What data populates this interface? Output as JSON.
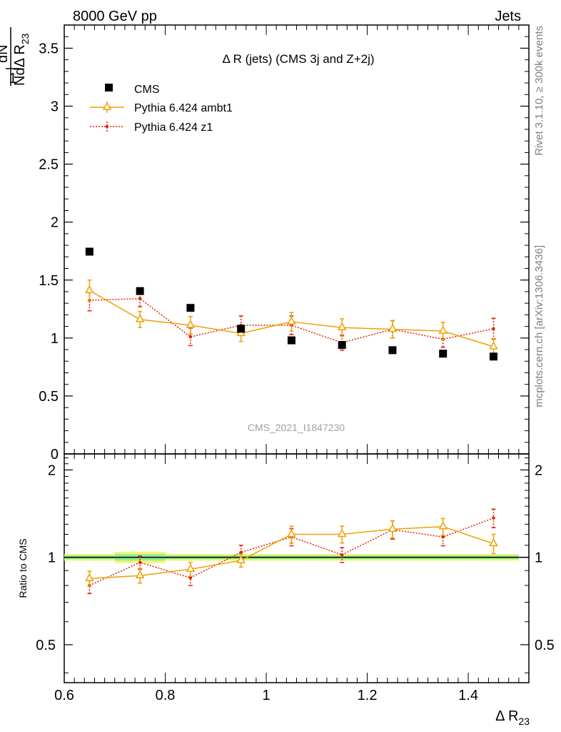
{
  "header": {
    "left": "8000 GeV pp",
    "right": "Jets"
  },
  "side_labels": {
    "rivet": "Rivet 3.1.10, ≥ 300k events",
    "mcplots": "mcplots.cern.ch [arXiv:1306.3436]"
  },
  "analysis_id": "CMS_2021_I1847230",
  "colors": {
    "data": "#000000",
    "ambt1": "#f0a000",
    "z1": "#e02000",
    "band_yellow": "#f5f57a",
    "band_green": "#90ee90"
  },
  "chart_data": [
    {
      "type": "scatter",
      "title": "Δ R (jets) (CMS 3j and Z+2j)",
      "xlabel": "Δ R23",
      "ylabel": "1/N dN/dΔ R23",
      "xlim": [
        0.6,
        1.52
      ],
      "ylim": [
        0,
        3.7
      ],
      "yticks": [
        "0",
        "0.5",
        "1",
        "1.5",
        "2",
        "2.5",
        "3",
        "3.5"
      ],
      "legend_position": "top-left",
      "grid": false,
      "x": [
        0.65,
        0.75,
        0.85,
        0.95,
        1.05,
        1.15,
        1.25,
        1.35,
        1.45
      ],
      "series": [
        {
          "name": "CMS",
          "marker": "square",
          "values": [
            1.745,
            1.405,
            1.26,
            1.08,
            0.98,
            0.94,
            0.895,
            0.865,
            0.84
          ]
        },
        {
          "name": "Pythia 6.424 ambt1",
          "marker": "open-triangle",
          "line": "solid",
          "values": [
            1.41,
            1.16,
            1.11,
            1.04,
            1.14,
            1.09,
            1.075,
            1.06,
            0.925
          ],
          "errors": [
            0.09,
            0.07,
            0.075,
            0.07,
            0.08,
            0.075,
            0.075,
            0.075,
            0.07
          ]
        },
        {
          "name": "Pythia 6.424 z1",
          "marker": "dot",
          "line": "dotted",
          "values": [
            1.325,
            1.34,
            1.01,
            1.11,
            1.11,
            0.96,
            1.075,
            0.99,
            1.08
          ],
          "errors": [
            0.09,
            0.07,
            0.075,
            0.08,
            0.08,
            0.065,
            0.075,
            0.07,
            0.09
          ]
        }
      ]
    },
    {
      "type": "scatter",
      "ylabel": "Ratio to CMS",
      "xlabel": "Δ R23",
      "xlim": [
        0.6,
        1.52
      ],
      "ylim": [
        0.37,
        2.27
      ],
      "yticks": [
        "0.5",
        "1",
        "2"
      ],
      "xticks": [
        "0.6",
        "0.8",
        "1",
        "1.2",
        "1.4"
      ],
      "grid": false,
      "x": [
        0.65,
        0.75,
        0.85,
        0.95,
        1.05,
        1.15,
        1.25,
        1.35,
        1.45
      ],
      "series": [
        {
          "name": "Pythia 6.424 ambt1",
          "marker": "open-triangle",
          "line": "solid",
          "values": [
            0.845,
            0.865,
            0.91,
            0.975,
            1.2,
            1.2,
            1.25,
            1.275,
            1.115
          ],
          "errors": [
            0.05,
            0.05,
            0.05,
            0.05,
            0.08,
            0.08,
            0.085,
            0.085,
            0.085
          ]
        },
        {
          "name": "Pythia 6.424 z1",
          "marker": "dot",
          "line": "dotted",
          "values": [
            0.8,
            0.96,
            0.85,
            1.04,
            1.175,
            1.02,
            1.245,
            1.175,
            1.365
          ],
          "errors": [
            0.05,
            0.05,
            0.05,
            0.06,
            0.08,
            0.06,
            0.09,
            0.08,
            0.1
          ]
        }
      ]
    }
  ]
}
